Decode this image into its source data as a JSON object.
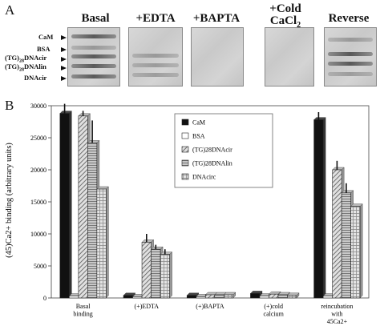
{
  "panel_a": {
    "letter": "A",
    "lane_labels": [
      "CaM",
      "BSA",
      "(TG)",
      "DNAcir",
      "(TG)",
      "DNAlin",
      "DNAcir"
    ],
    "blots": [
      {
        "title": "Basal"
      },
      {
        "title": "+EDTA"
      },
      {
        "title": "+BAPTA"
      },
      {
        "title_line1": "+Cold",
        "title_line2": "CaCl",
        "title_sub": "2"
      },
      {
        "title": "Reverse"
      }
    ]
  },
  "panel_b": {
    "letter": "B"
  },
  "chart_data": {
    "type": "bar",
    "ylabel": "(45)Ca2+ binding (arbitrary units)",
    "ylim": [
      0,
      30000
    ],
    "yticks": [
      0,
      5000,
      10000,
      15000,
      20000,
      25000,
      30000
    ],
    "categories": [
      [
        "Basal",
        "binding"
      ],
      [
        "(+)EDTA"
      ],
      [
        "(+)BAPTA"
      ],
      [
        "(+)cold",
        "calcium"
      ],
      [
        "reincubation",
        "with",
        "45Ca2+"
      ]
    ],
    "series": [
      {
        "name": "CaM",
        "color": "#111111",
        "pattern": "solid",
        "values": [
          28800,
          400,
          400,
          700,
          27800
        ],
        "errors": [
          1500,
          0,
          0,
          0,
          1200
        ]
      },
      {
        "name": "BSA",
        "color": "#ffffff",
        "pattern": "white",
        "values": [
          300,
          200,
          200,
          300,
          300
        ],
        "errors": [
          0,
          0,
          0,
          0,
          0
        ]
      },
      {
        "name": "(TG)28DNAcir",
        "color": "#cccccc",
        "pattern": "diag",
        "values": [
          28400,
          8700,
          500,
          600,
          20000
        ],
        "errors": [
          800,
          1300,
          0,
          0,
          1400
        ]
      },
      {
        "name": "(TG)28DNAlin",
        "color": "#b0b0b0",
        "pattern": "hstripe",
        "values": [
          24200,
          7600,
          500,
          500,
          16400
        ],
        "errors": [
          3500,
          700,
          0,
          0,
          1500
        ]
      },
      {
        "name": "DNAcirc",
        "color": "#d8d8d8",
        "pattern": "grid",
        "values": [
          17000,
          6800,
          500,
          400,
          14300
        ],
        "errors": [
          0,
          800,
          0,
          0,
          0
        ]
      }
    ],
    "legend_position": "top-center",
    "grid": false
  }
}
